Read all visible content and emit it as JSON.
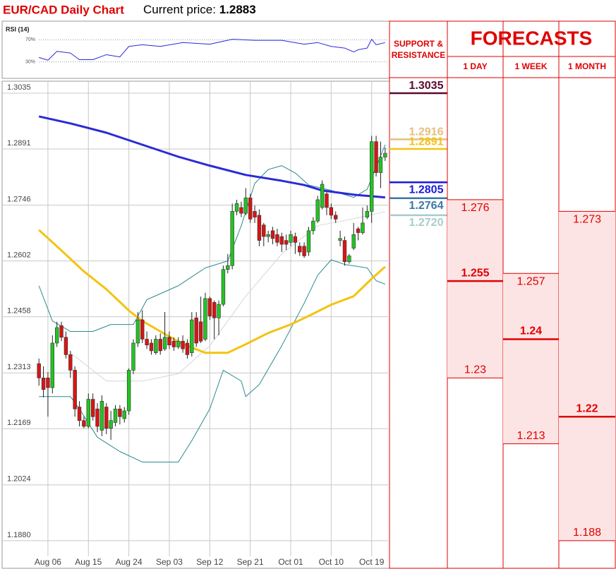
{
  "header": {
    "title": "EUR/CAD Daily Chart",
    "price_label": "Current price:",
    "price": 1.2883
  },
  "chart_data": [
    {
      "type": "candlestick",
      "categories": [
        null,
        null,
        "Aug 06",
        null,
        null,
        null,
        null,
        null,
        null,
        null,
        null,
        "Aug 15",
        null,
        null,
        null,
        null,
        null,
        null,
        null,
        null,
        "Aug 24",
        null,
        null,
        null,
        null,
        null,
        null,
        null,
        null,
        "Sep 03",
        null,
        null,
        null,
        null,
        null,
        null,
        null,
        null,
        "Sep 12",
        null,
        null,
        null,
        null,
        null,
        null,
        null,
        null,
        "Sep 21",
        null,
        null,
        null,
        null,
        null,
        null,
        null,
        null,
        "Oct 01",
        null,
        null,
        null,
        null,
        null,
        null,
        null,
        null,
        "Oct 10",
        null,
        null,
        null,
        null,
        null,
        null,
        null,
        null,
        "Oct 19",
        null,
        null,
        null
      ],
      "open": [
        1.2337,
        1.23,
        1.23,
        1.2275,
        1.239,
        1.2435,
        1.2405,
        1.236,
        1.232,
        1.2225,
        1.219,
        1.2175,
        1.2245,
        1.222,
        1.2165,
        1.2225,
        1.217,
        1.2185,
        1.222,
        1.2195,
        1.2215,
        1.232,
        1.239,
        1.245,
        1.24,
        1.239,
        1.2365,
        1.24,
        1.2375,
        1.2405,
        1.2395,
        1.238,
        1.2395,
        1.239,
        1.2365,
        1.2455,
        1.2445,
        1.24,
        1.2505,
        1.2495,
        1.2455,
        1.249,
        1.258,
        1.259,
        1.273,
        1.274,
        1.2725,
        1.2765,
        1.273,
        1.272,
        1.2695,
        1.2665,
        1.268,
        1.267,
        1.2665,
        1.2655,
        1.265,
        1.2665,
        1.264,
        1.264,
        1.2625,
        1.268,
        1.2705,
        1.274,
        1.2775,
        1.274,
        1.272,
        1.2655,
        1.2655,
        1.26,
        1.2635,
        1.2685,
        1.2675,
        1.2715,
        1.273,
        1.291,
        1.283,
        1.287
      ],
      "high": [
        1.235,
        1.233,
        1.2315,
        1.241,
        1.2445,
        1.2445,
        1.242,
        1.237,
        1.233,
        1.224,
        1.22,
        1.226,
        1.226,
        1.2235,
        1.2255,
        1.2235,
        1.2215,
        1.223,
        1.223,
        1.2225,
        1.2325,
        1.24,
        1.247,
        1.2475,
        1.242,
        1.24,
        1.241,
        1.2415,
        1.247,
        1.242,
        1.2405,
        1.2405,
        1.241,
        1.24,
        1.247,
        1.247,
        1.251,
        1.252,
        1.251,
        1.25,
        1.25,
        1.259,
        1.262,
        1.275,
        1.276,
        1.2755,
        1.279,
        1.2775,
        1.2745,
        1.2735,
        1.27,
        1.268,
        1.269,
        1.2685,
        1.2675,
        1.267,
        1.268,
        1.2675,
        1.265,
        1.265,
        1.269,
        1.2715,
        1.277,
        1.281,
        1.278,
        1.275,
        1.273,
        1.268,
        1.2665,
        1.262,
        1.27,
        1.269,
        1.274,
        1.2745,
        1.2925,
        1.2925,
        1.291,
        1.2895
      ],
      "low": [
        1.228,
        1.225,
        1.22,
        1.226,
        1.238,
        1.2395,
        1.235,
        1.23,
        1.22,
        1.2175,
        1.217,
        1.217,
        1.219,
        1.216,
        1.215,
        1.2155,
        1.214,
        1.2175,
        1.218,
        1.2185,
        1.2205,
        1.231,
        1.238,
        1.239,
        1.2375,
        1.236,
        1.236,
        1.236,
        1.237,
        1.2375,
        1.237,
        1.2375,
        1.2365,
        1.235,
        1.2355,
        1.238,
        1.239,
        1.2395,
        1.245,
        1.24,
        1.241,
        1.2485,
        1.257,
        1.258,
        1.272,
        1.2715,
        1.272,
        1.27,
        1.27,
        1.264,
        1.264,
        1.265,
        1.2645,
        1.264,
        1.2625,
        1.263,
        1.264,
        1.262,
        1.2615,
        1.261,
        1.2615,
        1.267,
        1.27,
        1.2735,
        1.272,
        1.271,
        1.27,
        1.264,
        1.259,
        1.2595,
        1.263,
        1.2655,
        1.267,
        1.271,
        1.27,
        1.282,
        1.279,
        1.286
      ],
      "close": [
        1.23,
        1.227,
        1.2275,
        1.239,
        1.243,
        1.2405,
        1.236,
        1.232,
        1.222,
        1.219,
        1.2175,
        1.2245,
        1.22,
        1.2175,
        1.224,
        1.217,
        1.219,
        1.222,
        1.22,
        1.2215,
        1.232,
        1.239,
        1.245,
        1.24,
        1.2385,
        1.237,
        1.24,
        1.237,
        1.2405,
        1.2385,
        1.238,
        1.2395,
        1.2375,
        1.236,
        1.245,
        1.239,
        1.2395,
        1.2505,
        1.246,
        1.2455,
        1.249,
        1.258,
        1.259,
        1.273,
        1.275,
        1.2725,
        1.2765,
        1.271,
        1.2715,
        1.2655,
        1.2665,
        1.267,
        1.266,
        1.265,
        1.2645,
        1.2645,
        1.267,
        1.265,
        1.2625,
        1.2615,
        1.268,
        1.2705,
        1.276,
        1.28,
        1.274,
        1.272,
        1.271,
        1.266,
        1.26,
        1.2615,
        1.267,
        1.2675,
        1.27,
        1.273,
        1.291,
        1.283,
        1.287,
        1.288
      ],
      "up_color": "#22c422",
      "down_color": "#d81414",
      "ylim": [
        1.1836,
        1.3066
      ],
      "yticks": [
        1.3035,
        1.2891,
        1.2746,
        1.2602,
        1.2458,
        1.2313,
        1.2169,
        1.2024,
        {
          "value": 1.188,
          "label": "1.1880"
        }
      ],
      "grid": true,
      "series": [
        {
          "color": "#d6d6d6",
          "width": 1,
          "x": [
            7,
            15,
            23,
            31,
            38,
            46,
            54,
            62,
            70,
            77
          ],
          "values": [
            1.2365,
            1.2292,
            1.2292,
            1.2311,
            1.2383,
            1.2511,
            1.262,
            1.2693,
            1.2711,
            1.2729
          ]
        },
        {
          "color": "#2a8a8a",
          "width": 1,
          "x": [
            0,
            3,
            7,
            12,
            16,
            21,
            24,
            31,
            37,
            42,
            45,
            48,
            51,
            54,
            57,
            60,
            65,
            70,
            73,
            77
          ],
          "values": [
            1.2538,
            1.2447,
            1.242,
            1.242,
            1.2438,
            1.2438,
            1.2502,
            1.2538,
            1.2584,
            1.2602,
            1.2693,
            1.2802,
            1.2838,
            1.2848,
            1.2829,
            1.2798,
            1.2784,
            1.2766,
            1.2787,
            1.2902
          ]
        },
        {
          "color": "#2a8a8a",
          "width": 1,
          "x": [
            0,
            7,
            9,
            13,
            18,
            23,
            31,
            34,
            38,
            41,
            45,
            46,
            49,
            54,
            59,
            62,
            65,
            68,
            73,
            75,
            77
          ],
          "values": [
            1.2252,
            1.2252,
            1.222,
            1.2147,
            1.211,
            1.2083,
            1.2083,
            1.2138,
            1.222,
            1.232,
            1.2292,
            1.2252,
            1.2283,
            1.2383,
            1.2493,
            1.2565,
            1.2605,
            1.2593,
            1.2584,
            1.2551,
            1.2542
          ]
        },
        {
          "color": "#f5c211",
          "width": 3,
          "x": [
            0,
            5,
            10,
            15,
            20,
            23,
            27,
            32,
            37,
            42,
            46,
            51,
            56,
            60,
            65,
            70,
            74,
            77
          ],
          "values": [
            1.2682,
            1.2629,
            1.2575,
            1.2529,
            1.2474,
            1.2447,
            1.242,
            1.2387,
            1.2365,
            1.2365,
            1.2387,
            1.2416,
            1.2438,
            1.246,
            1.2489,
            1.2511,
            1.2556,
            1.2587
          ]
        },
        {
          "color": "#2a2ad8",
          "width": 3,
          "x": [
            0,
            7,
            15,
            23,
            31,
            38,
            46,
            54,
            59,
            63,
            70,
            77
          ],
          "values": [
            1.2975,
            1.2957,
            1.2933,
            1.2902,
            1.2871,
            1.2848,
            1.2824,
            1.2809,
            1.2798,
            1.2784,
            1.2773,
            1.2766
          ]
        }
      ]
    },
    {
      "type": "line",
      "title": "RSI (14)",
      "ylim": [
        0,
        100
      ],
      "yticks": [
        {
          "value": 70,
          "label": "70%"
        },
        {
          "value": 30,
          "label": "30%"
        }
      ],
      "series": [
        {
          "color": "#2a2ad8",
          "x": [
            0,
            2,
            4,
            7,
            9,
            12,
            15,
            18,
            20,
            23,
            27,
            32,
            38,
            43,
            48,
            54,
            59,
            62,
            65,
            68,
            70,
            71,
            73,
            74,
            75,
            77
          ],
          "values": [
            38,
            33,
            49,
            46,
            34,
            34,
            43,
            39,
            58,
            61,
            58,
            65,
            62,
            71,
            69,
            69,
            62,
            65,
            58,
            55,
            48,
            52,
            55,
            71,
            61,
            65
          ]
        }
      ]
    }
  ],
  "support_resistance": {
    "title": "SUPPORT & RESISTANCE",
    "levels": [
      {
        "value": 1.3035,
        "color": "#5a0a2e"
      },
      {
        "value": 1.2916,
        "color": "#e6bf7e"
      },
      {
        "value": 1.2891,
        "color": "#f5c211"
      },
      {
        "value": 1.2805,
        "color": "#1a1adc"
      },
      {
        "value": 1.2764,
        "color": "#3a78a8"
      },
      {
        "value": {
          "value": 1.272,
          "label": "1.2720"
        },
        "color": "#a8cccc"
      }
    ]
  },
  "forecasts": {
    "title": "FORECASTS",
    "columns": [
      {
        "label": "1 DAY",
        "high": 1.276,
        "target": 1.255,
        "low": 1.23
      },
      {
        "label": "1 WEEK",
        "high": 1.257,
        "target": 1.24,
        "low": 1.213
      },
      {
        "label": "1 MONTH",
        "high": 1.273,
        "target": 1.22,
        "low": 1.188
      }
    ]
  }
}
